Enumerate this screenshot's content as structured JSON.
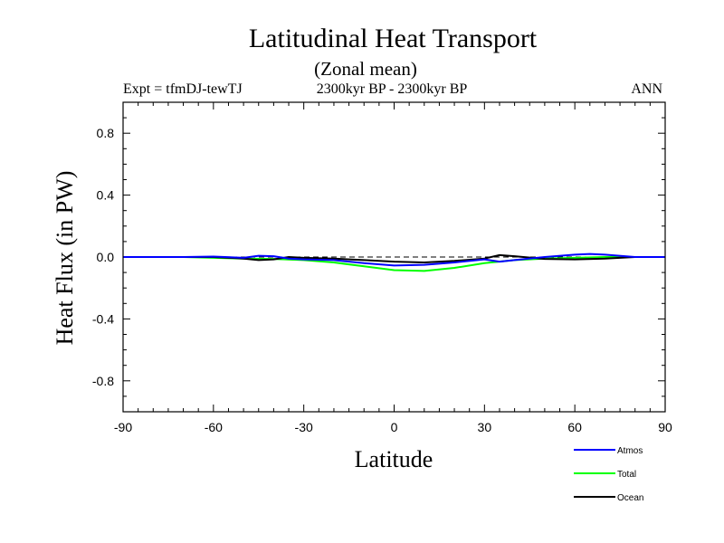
{
  "chart_data": {
    "type": "line",
    "title": "Latitudinal Heat Transport",
    "subtitle": "(Zonal mean)",
    "left_label": "Expt = tfmDJ-tewTJ",
    "center_label": "2300kyr BP - 2300kyr BP",
    "right_label": "ANN",
    "xlabel": "Latitude",
    "ylabel": "Heat Flux (in PW)",
    "xlim": [
      -90,
      90
    ],
    "ylim": [
      -1.0,
      1.0
    ],
    "x_ticks": [
      -90,
      -60,
      -30,
      0,
      30,
      60,
      90
    ],
    "x_tick_labels": [
      "-90",
      "-60",
      "-30",
      "0",
      "30",
      "60",
      "90"
    ],
    "y_ticks": [
      -0.8,
      -0.4,
      0.0,
      0.4,
      0.8
    ],
    "y_tick_labels": [
      "-0.8",
      "-0.4",
      "0.0",
      "0.4",
      "0.8"
    ],
    "zero_line": "dashed",
    "series": [
      {
        "name": "Atmos",
        "color": "#0000ff",
        "x": [
          -90,
          -80,
          -70,
          -60,
          -50,
          -45,
          -40,
          -35,
          -30,
          -20,
          -10,
          0,
          10,
          20,
          30,
          35,
          40,
          50,
          60,
          65,
          70,
          80,
          90
        ],
        "y": [
          0.0,
          0.0,
          0.0,
          0.003,
          -0.005,
          0.008,
          0.005,
          -0.01,
          -0.015,
          -0.02,
          -0.04,
          -0.055,
          -0.05,
          -0.035,
          -0.015,
          -0.03,
          -0.02,
          0.0,
          0.015,
          0.02,
          0.015,
          0.0,
          0.0
        ]
      },
      {
        "name": "Total",
        "color": "#00ff00",
        "x": [
          -90,
          -80,
          -70,
          -60,
          -50,
          -40,
          -30,
          -20,
          -10,
          0,
          10,
          20,
          30,
          40,
          50,
          60,
          70,
          80,
          90
        ],
        "y": [
          0.0,
          0.0,
          0.0,
          -0.005,
          -0.01,
          -0.012,
          -0.02,
          -0.035,
          -0.06,
          -0.085,
          -0.09,
          -0.07,
          -0.04,
          -0.02,
          -0.01,
          -0.005,
          0.0,
          0.0,
          0.0
        ]
      },
      {
        "name": "Ocean",
        "color": "#000000",
        "x": [
          -90,
          -80,
          -70,
          -60,
          -50,
          -45,
          -40,
          -35,
          -30,
          -20,
          -10,
          0,
          10,
          20,
          30,
          35,
          40,
          50,
          60,
          70,
          80,
          90
        ],
        "y": [
          0.0,
          0.0,
          0.0,
          0.0,
          -0.01,
          -0.02,
          -0.015,
          0.0,
          -0.005,
          -0.01,
          -0.02,
          -0.03,
          -0.035,
          -0.025,
          -0.01,
          0.012,
          0.005,
          -0.012,
          -0.015,
          -0.01,
          0.0,
          0.0
        ]
      }
    ],
    "legend": {
      "placement": "bottom-right",
      "entries": [
        "Atmos",
        "Total",
        "Ocean"
      ]
    }
  }
}
